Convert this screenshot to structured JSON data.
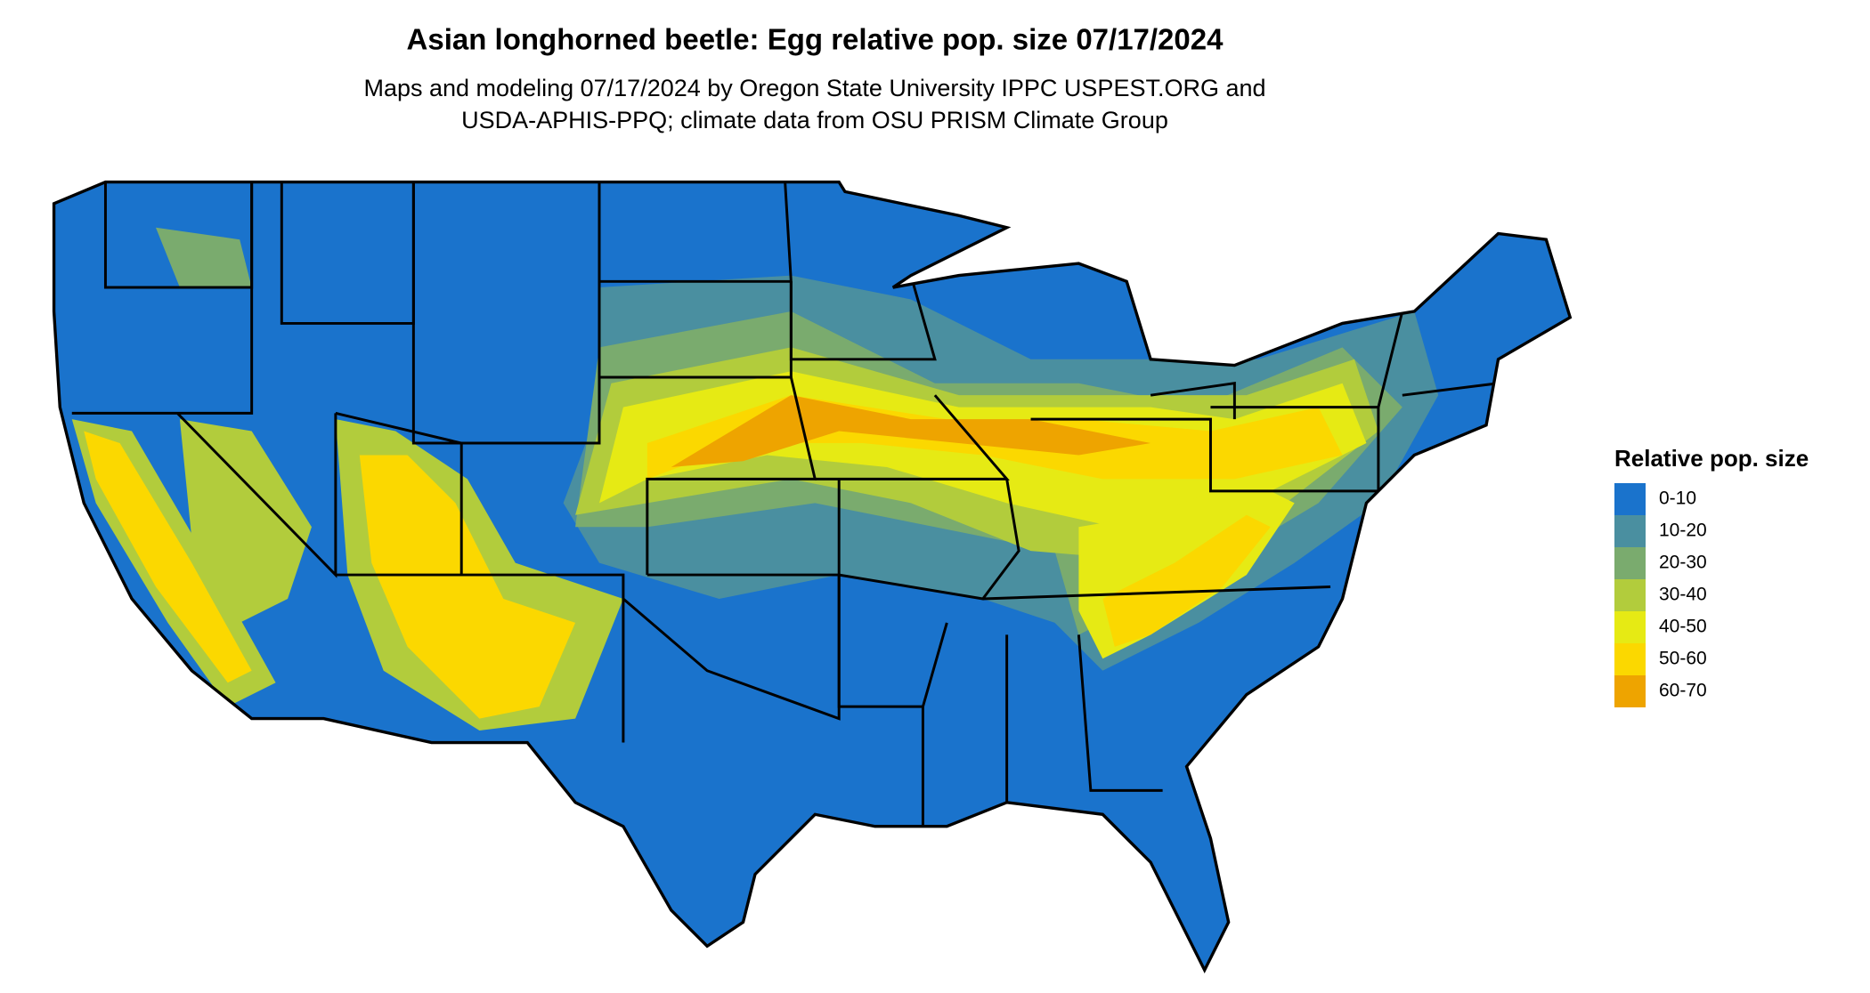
{
  "title": "Asian longhorned beetle: Egg relative pop. size 07/17/2024",
  "subtitle": [
    "Maps and modeling 07/17/2024 by Oregon State University IPPC USPEST.ORG and",
    "USDA-APHIS-PPQ; climate data from OSU PRISM Climate Group"
  ],
  "legend": {
    "title": "Relative pop. size",
    "items": [
      {
        "label": "0-10",
        "color": "#1a73cc"
      },
      {
        "label": "10-20",
        "color": "#4a8fa0"
      },
      {
        "label": "20-30",
        "color": "#7aab6e"
      },
      {
        "label": "30-40",
        "color": "#b2cc3c"
      },
      {
        "label": "40-50",
        "color": "#e6ea14"
      },
      {
        "label": "50-60",
        "color": "#fbd800"
      },
      {
        "label": "60-70",
        "color": "#eea400"
      }
    ]
  }
}
